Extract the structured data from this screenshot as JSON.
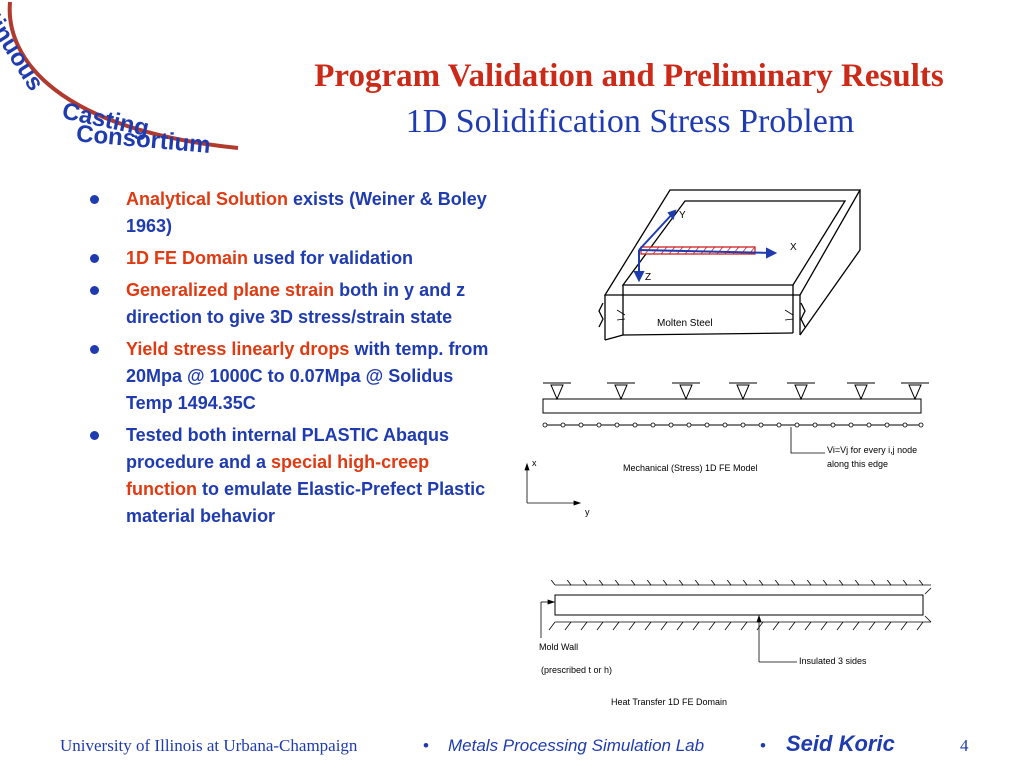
{
  "logo": {
    "line1": "Continuous",
    "line2": "Casting",
    "line3": "Consortium"
  },
  "title": "Program Validation and Preliminary Results",
  "subtitle": "1D Solidification Stress Problem",
  "bullets": [
    {
      "hl": "Analytical Solution",
      "rest": " exists (Weiner & Boley 1963)"
    },
    {
      "hl": "1D FE Domain",
      "rest": " used for validation"
    },
    {
      "hl": "Generalized plane strain",
      "rest": " both in y and z direction to give 3D stress/strain state"
    },
    {
      "hl": "Yield stress linearly drops",
      "rest": " with temp. from 20Mpa @ 1000C to 0.07Mpa @ Solidus Temp 1494.35C"
    },
    {
      "pre": "Tested both internal PLASTIC Abaqus procedure and a ",
      "hl": "special high-creep function",
      "rest": " to emulate Elastic-Prefect Plastic material behavior"
    }
  ],
  "diagram": {
    "mold_label": "Molten Steel",
    "axis_y": "Y",
    "axis_x": "X",
    "axis_z": "Z",
    "mech_note_1": "Vi=Vj for every i,j node",
    "mech_note_2": "along this edge",
    "mech_caption": "Mechanical (Stress) 1D FE Model",
    "coord_x": "x",
    "coord_y": "y",
    "mold_wall": "Mold Wall",
    "prescribed": "(prescribed t or h)",
    "insulated": "Insulated  3 sides",
    "heat_caption": "Heat Transfer 1D FE Domain"
  },
  "footer": {
    "university": "University of Illinois at Urbana-Champaign",
    "separator": "•",
    "lab": "Metals Processing Simulation Lab",
    "author": "Seid Koric",
    "page": "4"
  }
}
